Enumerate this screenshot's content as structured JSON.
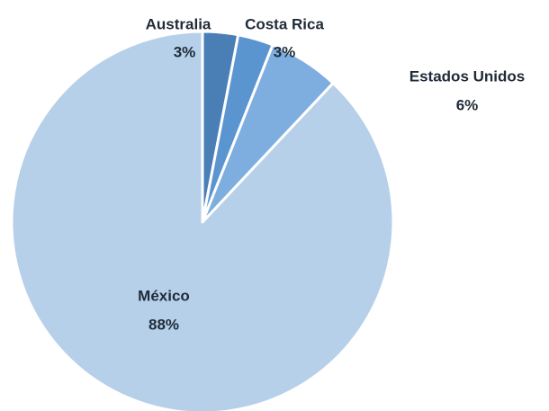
{
  "chart_data": {
    "type": "pie",
    "categories": [
      "Australia",
      "Costa Rica",
      "Estados Unidos",
      "México"
    ],
    "values": [
      3,
      3,
      6,
      88
    ],
    "value_labels": [
      "3%",
      "3%",
      "6%",
      "88%"
    ],
    "colors": [
      "#4a7fb6",
      "#5b95d0",
      "#7eaddf",
      "#b7d0ea"
    ]
  }
}
